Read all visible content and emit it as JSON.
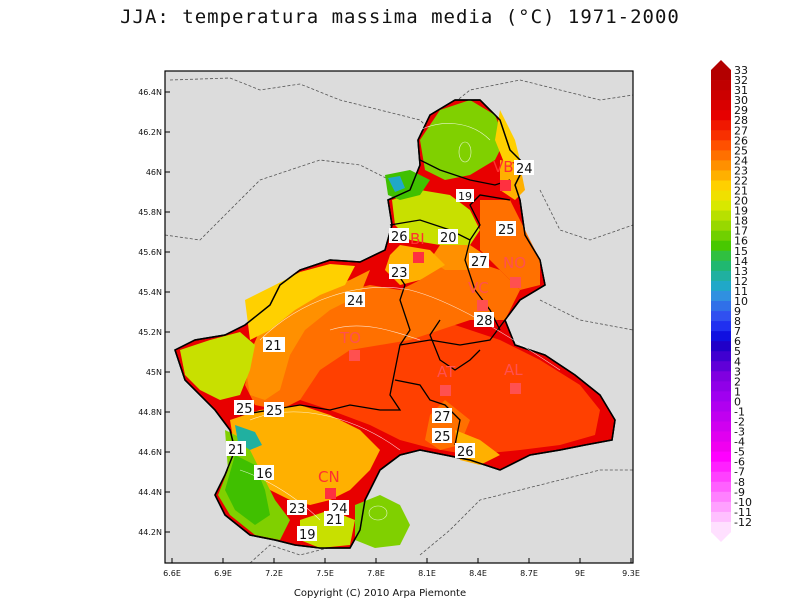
{
  "title": "JJA: temperatura massima media (°C) 1971-2000",
  "copyright": "Copyright (C) 2010 Arpa Piemonte",
  "axes": {
    "lat_ticks": [
      "46.4N",
      "46.2N",
      "46N",
      "45.8N",
      "45.6N",
      "45.4N",
      "45.2N",
      "45N",
      "44.8N",
      "44.6N",
      "44.4N",
      "44.2N"
    ],
    "lon_ticks": [
      "6.6E",
      "6.9E",
      "7.2E",
      "7.5E",
      "7.8E",
      "8.1E",
      "8.4E",
      "8.7E",
      "9E",
      "9.3E"
    ]
  },
  "colorbar": {
    "labels": [
      "33",
      "32",
      "31",
      "30",
      "29",
      "28",
      "27",
      "26",
      "25",
      "24",
      "23",
      "22",
      "21",
      "20",
      "19",
      "18",
      "17",
      "16",
      "15",
      "14",
      "13",
      "12",
      "11",
      "10",
      "9",
      "8",
      "7",
      "6",
      "5",
      "4",
      "3",
      "2",
      "1",
      "0",
      "-1",
      "-2",
      "-3",
      "-4",
      "-5",
      "-6",
      "-7",
      "-8",
      "-9",
      "-10",
      "-11",
      "-12"
    ],
    "colors": [
      "#b30000",
      "#c00000",
      "#cc0000",
      "#d90000",
      "#e60000",
      "#f01800",
      "#f83000",
      "#ff5000",
      "#ff7000",
      "#ff9000",
      "#ffb000",
      "#ffd000",
      "#f0e000",
      "#d8e800",
      "#b8e000",
      "#98d800",
      "#70d000",
      "#48c800",
      "#30c040",
      "#20b870",
      "#20b0a0",
      "#20a8c8",
      "#3090e0",
      "#3070e8",
      "#3050f0",
      "#2030f0",
      "#1010e0",
      "#2000c8",
      "#4000d0",
      "#6000d8",
      "#8000e0",
      "#9000e8",
      "#a000f0",
      "#b000f0",
      "#c000f0",
      "#d000f0",
      "#e000f0",
      "#f000f0",
      "#ff00ff",
      "#ff20ff",
      "#ff40ff",
      "#ff60ff",
      "#ff80ff",
      "#ffa0ff",
      "#ffc0ff",
      "#ffe0ff"
    ]
  },
  "cities": [
    {
      "code": "VB"
    },
    {
      "code": "BI"
    },
    {
      "code": "NO"
    },
    {
      "code": "VC"
    },
    {
      "code": "TO"
    },
    {
      "code": "AT"
    },
    {
      "code": "AL"
    },
    {
      "code": "CN"
    }
  ],
  "value_labels": [
    "24",
    "19",
    "25",
    "26",
    "23",
    "20",
    "27",
    "28",
    "24",
    "21",
    "25",
    "25",
    "27",
    "25",
    "26",
    "21",
    "16",
    "23",
    "24",
    "21",
    "19"
  ]
}
